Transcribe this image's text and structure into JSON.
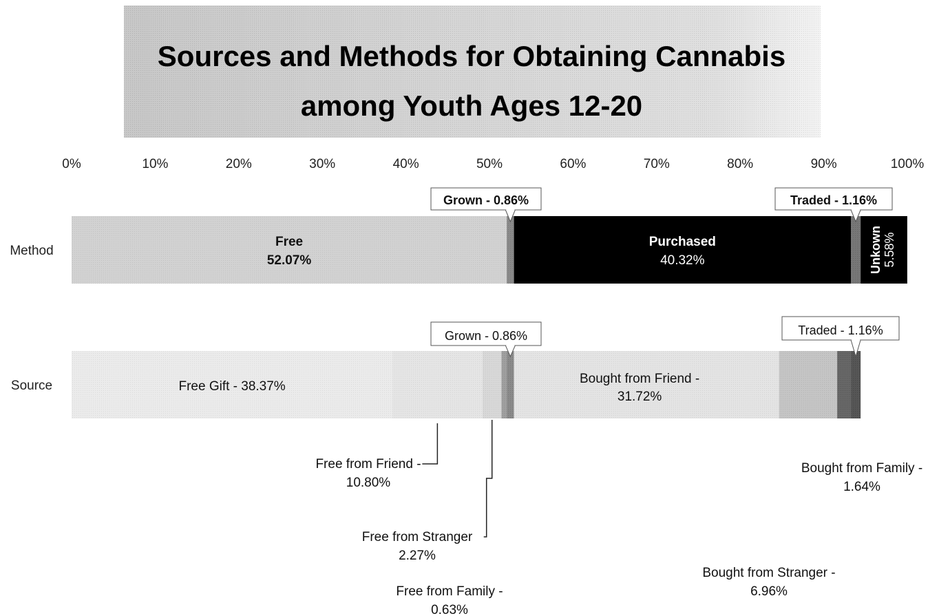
{
  "chart_data": {
    "type": "bar",
    "orientation": "horizontal",
    "stacked": "percent",
    "title_line1": "Sources and Methods for Obtaining Cannabis",
    "title_line2": "among Youth Ages 12-20",
    "xlim": [
      0,
      100
    ],
    "ticks": [
      "0%",
      "10%",
      "20%",
      "30%",
      "40%",
      "50%",
      "60%",
      "70%",
      "80%",
      "90%",
      "100%"
    ],
    "categories": [
      "Method",
      "Source"
    ],
    "method": {
      "label": "Method",
      "segments": [
        {
          "name": "Free",
          "value": 52.07,
          "color": "#cfcfcf",
          "label_line1": "Free",
          "label_line2": "52.07%"
        },
        {
          "name": "Grown",
          "value": 0.86,
          "color": "#6e6e6e"
        },
        {
          "name": "Purchased",
          "value": 40.32,
          "color": "#000000",
          "label_line1": "Purchased",
          "label_line2": "40.32%"
        },
        {
          "name": "Traded",
          "value": 1.16,
          "color": "#555555"
        },
        {
          "name": "Unkown",
          "value": 5.58,
          "color": "#000000",
          "label_line1": "Unkown",
          "label_line2": "5.58%"
        }
      ],
      "callouts": [
        {
          "text": "Grown - 0.86%"
        },
        {
          "text": "Traded - 1.16%"
        }
      ]
    },
    "source": {
      "label": "Source",
      "segments": [
        {
          "name": "Free Gift",
          "value": 38.37,
          "color": "#f0f0f0",
          "label": "Free Gift - 38.37%"
        },
        {
          "name": "Free from Friend",
          "value": 10.8,
          "color": "#e8e8e8"
        },
        {
          "name": "Free from Stranger",
          "value": 2.27,
          "color": "#d6d6d6"
        },
        {
          "name": "Free from Family",
          "value": 0.63,
          "color": "#8a8a8a"
        },
        {
          "name": "Grown",
          "value": 0.86,
          "color": "#6e6e6e"
        },
        {
          "name": "Bought from Friend",
          "value": 31.72,
          "color": "#e6e6e6",
          "label_line1": "Bought from Friend -",
          "label_line2": "31.72%"
        },
        {
          "name": "Bought from Stranger",
          "value": 6.96,
          "color": "#bdbdbd"
        },
        {
          "name": "Bought from Family",
          "value": 1.64,
          "color": "#404040"
        },
        {
          "name": "Traded",
          "value": 1.16,
          "color": "#2a2a2a"
        }
      ],
      "callouts": [
        {
          "text": "Grown - 0.86%"
        },
        {
          "text": "Traded - 1.16%"
        }
      ],
      "below_labels": [
        {
          "line1": "Free from Friend -",
          "line2": "10.80%"
        },
        {
          "line1": "Free from Stranger",
          "line2": "2.27%"
        },
        {
          "line1": "Free from Family -",
          "line2": "0.63%"
        },
        {
          "line1": "Bought from Family -",
          "line2": "1.64%"
        },
        {
          "line1": "Bought from Stranger -",
          "line2": "6.96%"
        }
      ]
    }
  }
}
